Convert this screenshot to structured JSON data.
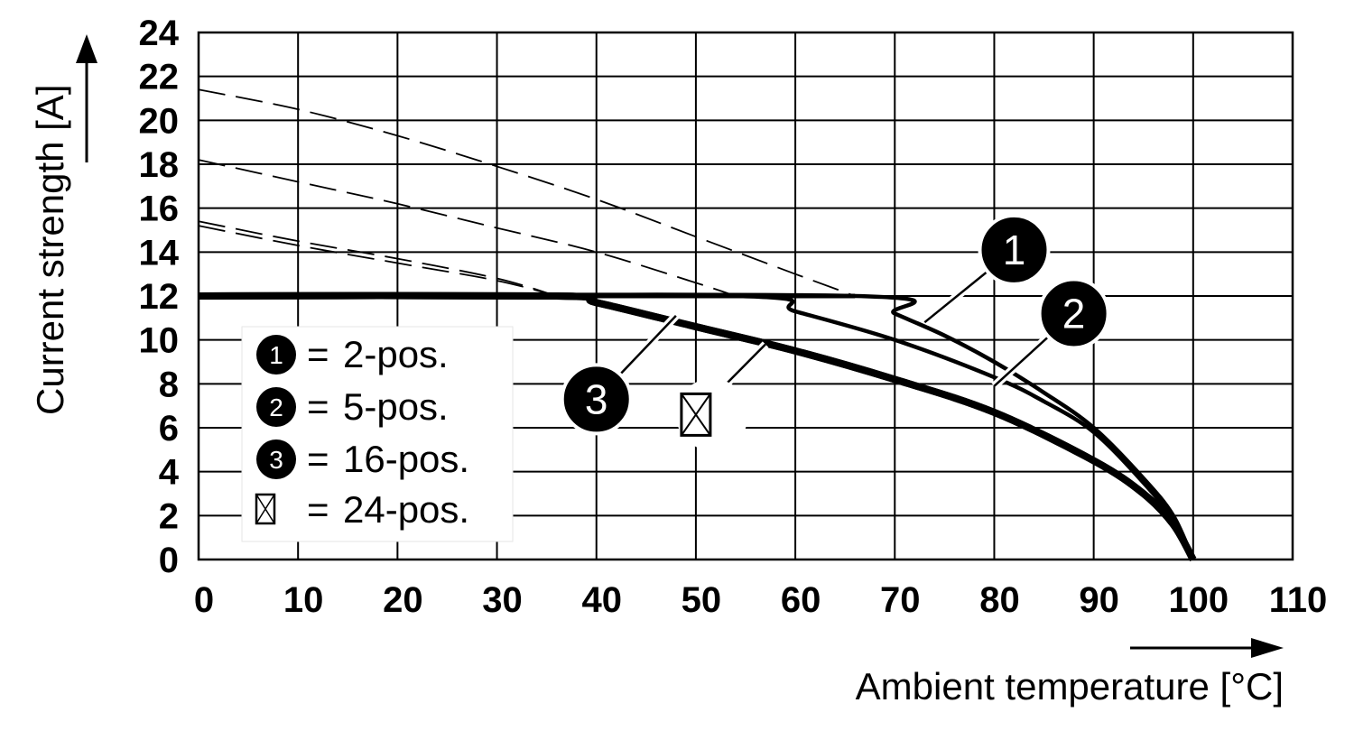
{
  "chart_data": {
    "type": "line",
    "xlabel": "Ambient temperature [°C]",
    "ylabel": "Current strength [A]",
    "xlim": [
      0,
      110
    ],
    "ylim": [
      0,
      24
    ],
    "x_ticks": [
      "0",
      "10",
      "20",
      "30",
      "40",
      "50",
      "60",
      "70",
      "80",
      "90",
      "100",
      "110"
    ],
    "y_ticks": [
      "0",
      "2",
      "4",
      "6",
      "8",
      "10",
      "12",
      "14",
      "16",
      "18",
      "20",
      "22",
      "24"
    ],
    "grid": true,
    "legend_position": "left-center",
    "legend": [
      {
        "marker": "1",
        "equals": "=",
        "text": "2-pos."
      },
      {
        "marker": "2",
        "equals": "=",
        "text": "5-pos."
      },
      {
        "marker": "3",
        "equals": "=",
        "text": "16-pos."
      },
      {
        "marker": "box-x",
        "equals": "=",
        "text": "24-pos."
      }
    ],
    "cap_current": 12,
    "series": [
      {
        "name": "2-pos.",
        "marker": "1",
        "style": "solid",
        "x": [
          0,
          66,
          70,
          75,
          80,
          85,
          90,
          95,
          98,
          100
        ],
        "y": [
          12,
          12,
          11.2,
          10.2,
          9.0,
          7.6,
          6.0,
          3.7,
          2.0,
          0
        ]
      },
      {
        "name": "2-pos. (uncapped)",
        "marker": "1",
        "style": "dashed",
        "x": [
          0,
          10,
          20,
          30,
          40,
          50,
          60,
          66
        ],
        "y": [
          21.4,
          20.5,
          19.3,
          17.9,
          16.4,
          14.7,
          13.0,
          12
        ]
      },
      {
        "name": "5-pos.",
        "marker": "2",
        "style": "solid",
        "x": [
          0,
          54,
          60,
          70,
          80,
          85,
          90,
          95,
          98,
          100
        ],
        "y": [
          12,
          12,
          11.3,
          10.0,
          8.3,
          7.2,
          5.8,
          3.5,
          1.8,
          0
        ]
      },
      {
        "name": "5-pos. (uncapped)",
        "marker": "2",
        "style": "dashed",
        "x": [
          0,
          10,
          20,
          30,
          40,
          50,
          54
        ],
        "y": [
          18.2,
          17.2,
          16.2,
          15.1,
          14.0,
          12.6,
          12
        ]
      },
      {
        "name": "16-pos.",
        "marker": "3",
        "style": "solid-thick",
        "x": [
          0,
          36,
          40,
          50,
          60,
          70,
          80,
          90,
          95,
          98,
          100
        ],
        "y": [
          12,
          12,
          11.7,
          10.6,
          9.5,
          8.2,
          6.7,
          4.5,
          3.0,
          1.6,
          0
        ]
      },
      {
        "name": "16-pos. (uncapped)",
        "marker": "3",
        "style": "dashed",
        "x": [
          0,
          10,
          20,
          30,
          36
        ],
        "y": [
          15.4,
          14.5,
          13.7,
          12.8,
          12
        ]
      },
      {
        "name": "24-pos.",
        "marker": "box-x",
        "style": "solid-thick",
        "x": [
          0,
          36,
          40,
          50,
          60,
          70,
          80,
          90,
          95,
          98,
          100
        ],
        "y": [
          12,
          12,
          11.7,
          10.6,
          9.5,
          8.2,
          6.7,
          4.5,
          3.0,
          1.6,
          0
        ]
      },
      {
        "name": "24-pos. (uncapped)",
        "marker": "box-x",
        "style": "dashed",
        "x": [
          0,
          10,
          20,
          30,
          36
        ],
        "y": [
          15.2,
          14.3,
          13.5,
          12.7,
          12
        ]
      }
    ],
    "callouts": [
      {
        "marker": "1",
        "label": "1",
        "point": [
          73,
          10.8
        ],
        "label_at": [
          82,
          14.1
        ]
      },
      {
        "marker": "2",
        "label": "2",
        "point": [
          80,
          7.9
        ],
        "label_at": [
          88,
          11.2
        ]
      },
      {
        "marker": "3",
        "label": "3",
        "point": [
          48,
          11.1
        ],
        "label_at": [
          40,
          7.3
        ]
      },
      {
        "marker": "box-x",
        "label": "",
        "point": [
          57,
          9.8
        ],
        "label_at": [
          50,
          6.6
        ]
      }
    ]
  }
}
